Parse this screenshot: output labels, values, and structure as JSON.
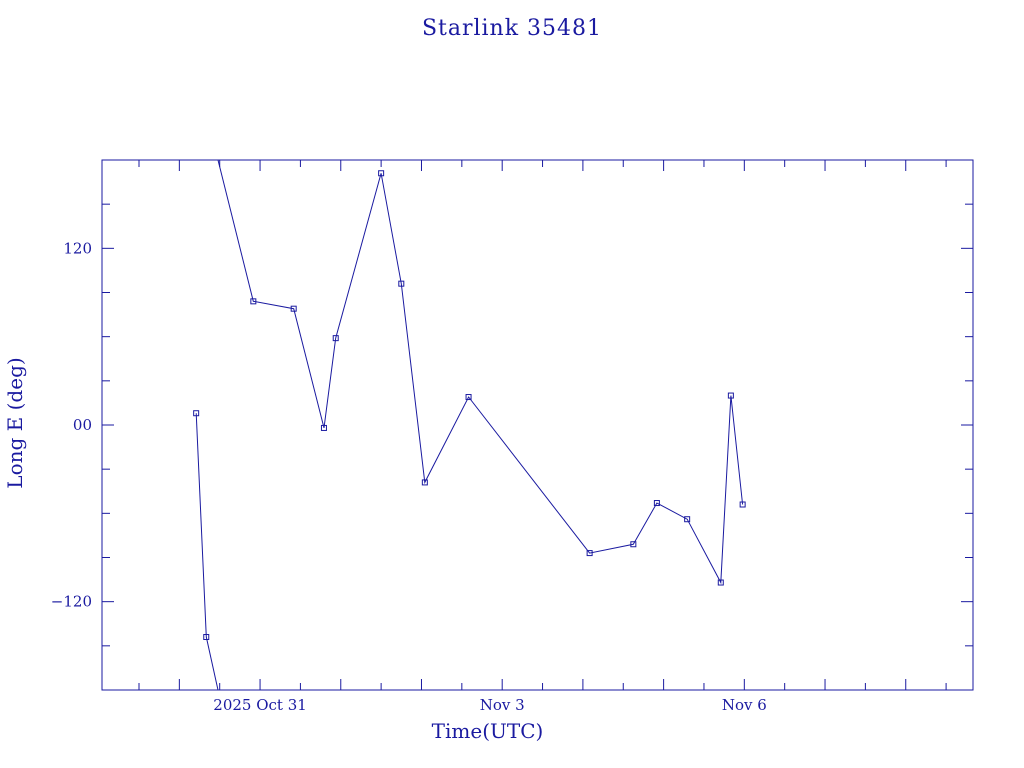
{
  "chart_data": {
    "type": "line",
    "title": "Starlink 35481",
    "xlabel": "Time(UTC)",
    "ylabel": "Long E (deg)",
    "x_unit": "days (UTC)",
    "xlim": [
      "2025-10-29 01:00",
      "2025-11-08 20:00"
    ],
    "ylim": [
      -180,
      180
    ],
    "x_tick_labels": [
      {
        "label": "2025 Oct 31",
        "at": "2025-10-31 00:00"
      },
      {
        "label": "Nov  3",
        "at": "2025-11-03 00:00"
      },
      {
        "label": "Nov  6",
        "at": "2025-11-06 00:00"
      }
    ],
    "y_tick_labels": [
      "120",
      "00",
      "−120"
    ],
    "y_ticks": [
      120,
      0,
      -120
    ],
    "grid": false,
    "legend": "none",
    "series": [
      {
        "points": [
          {
            "t": "2025-10-30 05:00",
            "lon": 8
          },
          {
            "t": "2025-10-30 08:00",
            "lon": -144
          },
          {
            "t": "2025-10-30 11:30",
            "lon": -180
          }
        ]
      },
      {
        "points": [
          {
            "t": "2025-10-30 11:30",
            "lon": 180
          },
          {
            "t": "2025-10-30 22:00",
            "lon": 84
          },
          {
            "t": "2025-10-31 10:00",
            "lon": 79
          },
          {
            "t": "2025-10-31 19:00",
            "lon": -2
          },
          {
            "t": "2025-10-31 22:30",
            "lon": 59
          },
          {
            "t": "2025-11-01 12:00",
            "lon": 171
          },
          {
            "t": "2025-11-01 18:00",
            "lon": 96
          },
          {
            "t": "2025-11-02 01:00",
            "lon": -39
          },
          {
            "t": "2025-11-02 14:00",
            "lon": 19
          },
          {
            "t": "2025-11-04 02:00",
            "lon": -87
          },
          {
            "t": "2025-11-04 15:00",
            "lon": -81
          },
          {
            "t": "2025-11-04 22:00",
            "lon": -53
          },
          {
            "t": "2025-11-05 07:00",
            "lon": -64
          },
          {
            "t": "2025-11-05 17:00",
            "lon": -107
          },
          {
            "t": "2025-11-05 20:00",
            "lon": 20
          },
          {
            "t": "2025-11-05 23:30",
            "lon": -54
          }
        ]
      }
    ],
    "colors": {
      "line": "#1a1aa0",
      "marker": "#1a1aa0",
      "text": "#1a1aa0"
    }
  }
}
